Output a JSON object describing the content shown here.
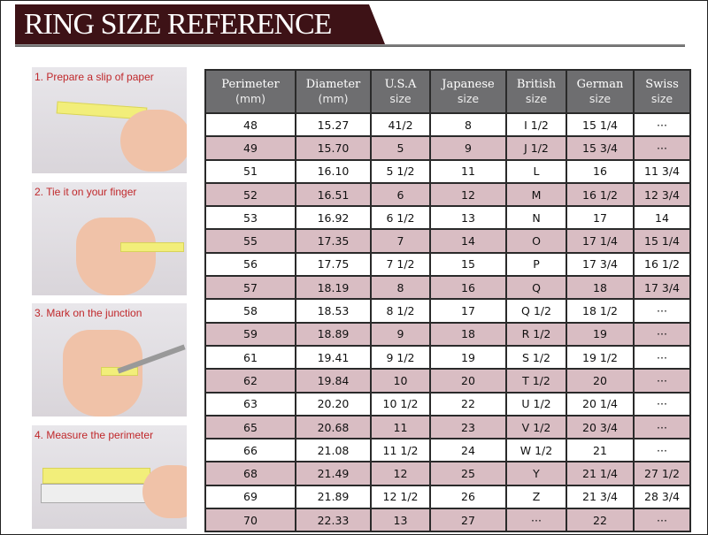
{
  "title": "RING SIZE REFERENCE",
  "steps": [
    {
      "label": "1. Prepare a slip of paper"
    },
    {
      "label": "2. Tie it on your finger"
    },
    {
      "label": "3. Mark on the junction"
    },
    {
      "label": "4. Measure the perimeter"
    }
  ],
  "colors": {
    "banner": "#3d1216",
    "header": "#6e6e70",
    "row_alt": "#d9bdc3",
    "step_label": "#c0282b"
  },
  "chart_data": {
    "type": "table",
    "columns": [
      {
        "title": "Perimeter",
        "sub": "(mm)"
      },
      {
        "title": "Diameter",
        "sub": "(mm)"
      },
      {
        "title": "U.S.A",
        "sub": "size"
      },
      {
        "title": "Japanese",
        "sub": "size"
      },
      {
        "title": "British",
        "sub": "size"
      },
      {
        "title": "German",
        "sub": "size"
      },
      {
        "title": "Swiss",
        "sub": "size"
      }
    ],
    "rows": [
      [
        "48",
        "15.27",
        "41/2",
        "8",
        "I 1/2",
        "15 1/4",
        "···"
      ],
      [
        "49",
        "15.70",
        "5",
        "9",
        "J 1/2",
        "15 3/4",
        "···"
      ],
      [
        "51",
        "16.10",
        "5 1/2",
        "11",
        "L",
        "16",
        "11 3/4"
      ],
      [
        "52",
        "16.51",
        "6",
        "12",
        "M",
        "16 1/2",
        "12 3/4"
      ],
      [
        "53",
        "16.92",
        "6 1/2",
        "13",
        "N",
        "17",
        "14"
      ],
      [
        "55",
        "17.35",
        "7",
        "14",
        "O",
        "17 1/4",
        "15 1/4"
      ],
      [
        "56",
        "17.75",
        "7 1/2",
        "15",
        "P",
        "17 3/4",
        "16 1/2"
      ],
      [
        "57",
        "18.19",
        "8",
        "16",
        "Q",
        "18",
        "17 3/4"
      ],
      [
        "58",
        "18.53",
        "8 1/2",
        "17",
        "Q  1/2",
        "18 1/2",
        "···"
      ],
      [
        "59",
        "18.89",
        "9",
        "18",
        "R 1/2",
        "19",
        "···"
      ],
      [
        "61",
        "19.41",
        "9 1/2",
        "19",
        "S 1/2",
        "19 1/2",
        "···"
      ],
      [
        "62",
        "19.84",
        "10",
        "20",
        "T 1/2",
        "20",
        "···"
      ],
      [
        "63",
        "20.20",
        "10 1/2",
        "22",
        "U 1/2",
        "20 1/4",
        "···"
      ],
      [
        "65",
        "20.68",
        "11",
        "23",
        "V 1/2",
        "20 3/4",
        "···"
      ],
      [
        "66",
        "21.08",
        "11 1/2",
        "24",
        "W 1/2",
        "21",
        "···"
      ],
      [
        "68",
        "21.49",
        "12",
        "25",
        "Y",
        "21 1/4",
        "27 1/2"
      ],
      [
        "69",
        "21.89",
        "12 1/2",
        "26",
        "Z",
        "21 3/4",
        "28 3/4"
      ],
      [
        "70",
        "22.33",
        "13",
        "27",
        "···",
        "22",
        "···"
      ]
    ]
  }
}
